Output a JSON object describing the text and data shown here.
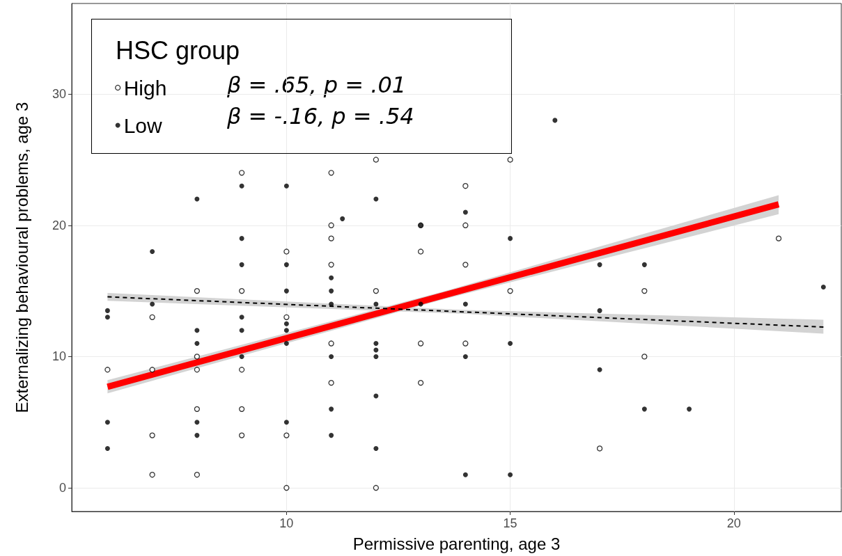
{
  "chart_data": {
    "type": "scatter",
    "xlabel": "Permissive parenting, age 3",
    "ylabel": "Externalizing behavioural problems, age 3",
    "legend_title": "HSC group",
    "annotations": [
      "β = .65, p = .01",
      "β = -.16, p = .54"
    ],
    "xlim": [
      5.2,
      22.4
    ],
    "xticks": [
      10,
      15,
      20
    ],
    "ylim": [
      -1.8,
      36.9
    ],
    "yticks": [
      0,
      10,
      20,
      30
    ],
    "grid": true,
    "legend": "top left",
    "series": [
      {
        "name": "High",
        "type": "scatter",
        "marker": "circle",
        "color": "#000000",
        "x": [
          6,
          7,
          7,
          7,
          7,
          8,
          8,
          8,
          8,
          8,
          9,
          9,
          9,
          9,
          9,
          10,
          10,
          10,
          10,
          11,
          11,
          11,
          11,
          11,
          11,
          12,
          12,
          12,
          13,
          13,
          13,
          13,
          14,
          14,
          14,
          14,
          15,
          15,
          17,
          18,
          18,
          21
        ],
        "values": [
          9,
          13,
          9,
          4,
          1,
          15,
          10,
          9,
          6,
          1,
          24,
          15,
          9,
          6,
          4,
          18,
          13,
          4,
          0,
          24,
          20,
          19,
          17,
          11,
          8,
          25,
          15,
          0,
          20,
          18,
          11,
          8,
          23,
          20,
          17,
          11,
          25,
          15,
          3,
          15,
          10,
          19
        ]
      },
      {
        "name": "Low",
        "type": "scatter",
        "marker": "circle",
        "color": "#000000",
        "x": [
          6,
          6,
          6,
          6,
          7,
          7,
          8,
          8,
          8,
          8,
          8,
          9,
          9,
          9,
          9,
          9,
          9,
          10,
          10,
          10,
          10,
          10,
          10,
          10,
          11,
          11,
          11,
          11,
          11,
          11,
          11.25,
          12,
          12,
          12,
          12,
          12,
          12,
          12,
          13,
          13,
          14,
          14,
          14,
          14,
          15,
          15,
          15,
          16,
          17,
          17,
          17,
          18,
          18,
          19,
          22
        ],
        "values": [
          13.5,
          13,
          5,
          3,
          18,
          14,
          22,
          12,
          11,
          5,
          4,
          23,
          19,
          17,
          13,
          12,
          10,
          23,
          17,
          15,
          12.5,
          12,
          11,
          5,
          16,
          15,
          14,
          10,
          6,
          4,
          20.5,
          22,
          14,
          11,
          10.5,
          10,
          7,
          3,
          20,
          14,
          21,
          14,
          10,
          1,
          19,
          11,
          1,
          28,
          17,
          13.5,
          9,
          17,
          6,
          6,
          15.3
        ]
      },
      {
        "type": "line",
        "marker": "none",
        "color": "#ff0000",
        "line_style": "solid",
        "x": [
          6,
          13.5,
          21
        ],
        "values": [
          7.7,
          14.65,
          21.6
        ],
        "lower": [
          7.2,
          14.35,
          20.85
        ],
        "upper": [
          8.2,
          14.95,
          22.3
        ]
      },
      {
        "type": "line",
        "marker": "none",
        "color": "#000000",
        "line_style": "dashed",
        "x": [
          6,
          14,
          22
        ],
        "values": [
          14.55,
          13.4,
          12.25
        ],
        "lower": [
          14.25,
          13.25,
          11.75
        ],
        "upper": [
          14.85,
          13.55,
          12.8
        ]
      }
    ]
  }
}
